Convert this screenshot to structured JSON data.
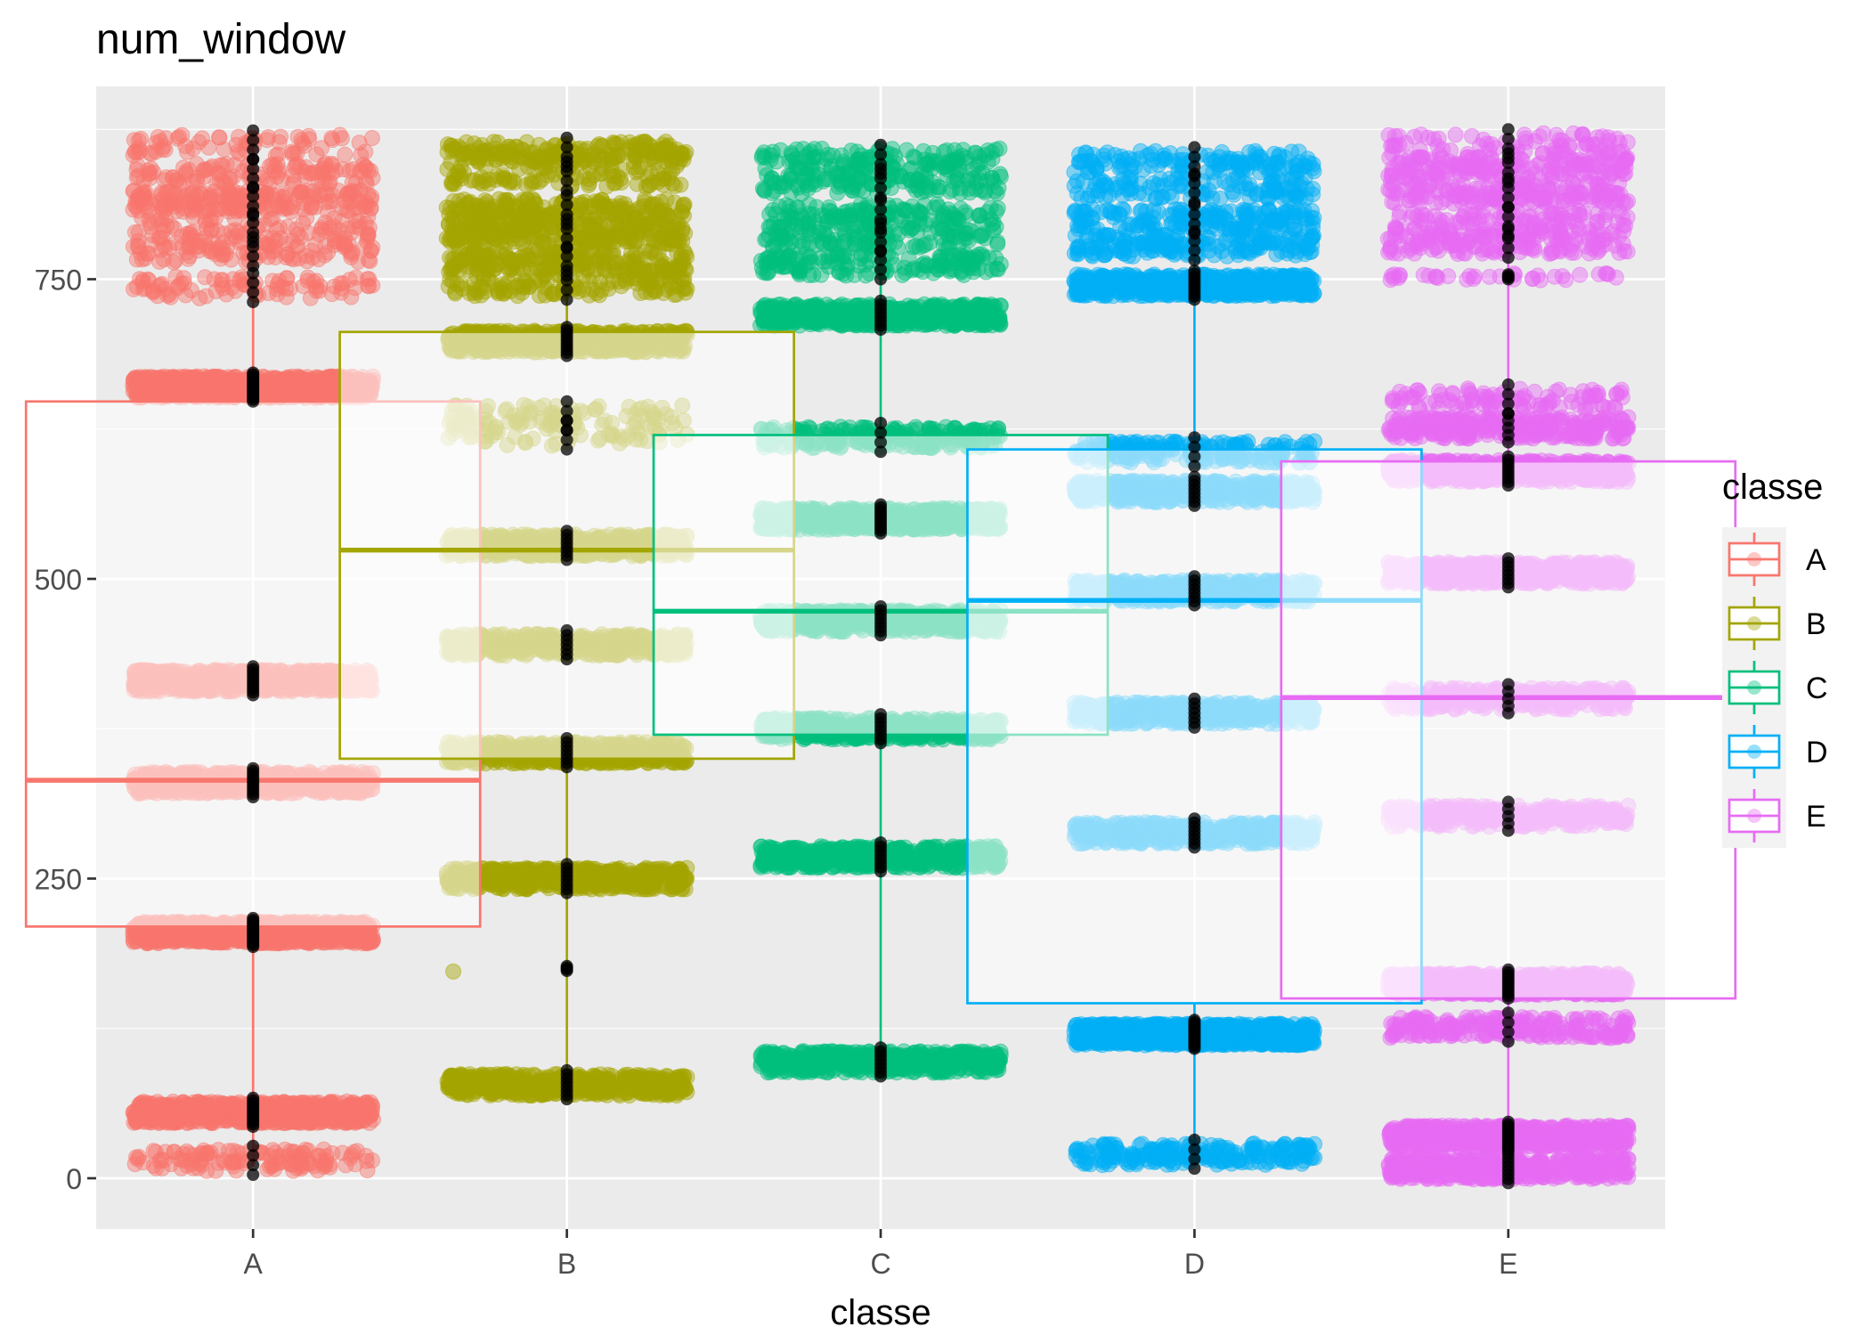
{
  "chart_data": {
    "type": "box+jitter",
    "title": "num_window",
    "xlabel": "classe",
    "ylabel": "",
    "categories": [
      "A",
      "B",
      "C",
      "D",
      "E"
    ],
    "y_ticks": [
      0,
      250,
      500,
      750
    ],
    "y_tick_labels": [
      "0",
      "250",
      "500",
      "750"
    ],
    "ylim": [
      -42,
      910
    ],
    "grid": true,
    "legend": {
      "title": "classe",
      "position": "right",
      "items": [
        "A",
        "B",
        "C",
        "D",
        "E"
      ]
    },
    "colors": {
      "A": "#F8766D",
      "B": "#A3A500",
      "C": "#00BF7D",
      "D": "#00B0F6",
      "E": "#E76BF3"
    },
    "series": [
      {
        "name": "A",
        "box": {
          "min": 10,
          "q1": 210,
          "median": 332,
          "q3": 648,
          "max": 864
        },
        "bands": [
          {
            "y": 15,
            "n": 130
          },
          {
            "y": 55,
            "n": 700
          },
          {
            "y": 205,
            "n": 1100
          },
          {
            "y": 330,
            "n": 650
          },
          {
            "y": 415,
            "n": 650
          },
          {
            "y": 660,
            "n": 1300
          },
          {
            "y": 743,
            "n": 90
          },
          {
            "y": 773,
            "n": 110
          },
          {
            "y": 793,
            "n": 90
          },
          {
            "y": 815,
            "n": 200
          },
          {
            "y": 838,
            "n": 110
          },
          {
            "y": 862,
            "n": 70
          }
        ]
      },
      {
        "name": "B",
        "box": {
          "min": 70,
          "q1": 350,
          "median": 524,
          "q3": 706,
          "max": 864
        },
        "bands": [
          {
            "y": 78,
            "n": 500
          },
          {
            "y": 175,
            "n": 1
          },
          {
            "y": 250,
            "n": 500
          },
          {
            "y": 355,
            "n": 500
          },
          {
            "y": 445,
            "n": 400
          },
          {
            "y": 528,
            "n": 500
          },
          {
            "y": 620,
            "n": 60
          },
          {
            "y": 636,
            "n": 90
          },
          {
            "y": 698,
            "n": 600
          },
          {
            "y": 745,
            "n": 130
          },
          {
            "y": 765,
            "n": 220
          },
          {
            "y": 788,
            "n": 250
          },
          {
            "y": 808,
            "n": 200
          },
          {
            "y": 836,
            "n": 100
          },
          {
            "y": 856,
            "n": 200
          }
        ]
      },
      {
        "name": "C",
        "box": {
          "min": 90,
          "q1": 370,
          "median": 473,
          "q3": 620,
          "max": 853
        },
        "bands": [
          {
            "y": 97,
            "n": 500
          },
          {
            "y": 268,
            "n": 450
          },
          {
            "y": 375,
            "n": 500
          },
          {
            "y": 465,
            "n": 500
          },
          {
            "y": 550,
            "n": 650
          },
          {
            "y": 618,
            "n": 220
          },
          {
            "y": 720,
            "n": 500
          },
          {
            "y": 762,
            "n": 150
          },
          {
            "y": 785,
            "n": 130
          },
          {
            "y": 804,
            "n": 130
          },
          {
            "y": 830,
            "n": 130
          },
          {
            "y": 850,
            "n": 130
          }
        ]
      },
      {
        "name": "D",
        "box": {
          "min": 18,
          "q1": 146,
          "median": 482,
          "q3": 608,
          "max": 852
        },
        "bands": [
          {
            "y": 20,
            "n": 220
          },
          {
            "y": 120,
            "n": 1000
          },
          {
            "y": 288,
            "n": 450
          },
          {
            "y": 388,
            "n": 400
          },
          {
            "y": 490,
            "n": 450
          },
          {
            "y": 573,
            "n": 500
          },
          {
            "y": 606,
            "n": 200
          },
          {
            "y": 745,
            "n": 600
          },
          {
            "y": 778,
            "n": 180
          },
          {
            "y": 800,
            "n": 180
          },
          {
            "y": 826,
            "n": 120
          },
          {
            "y": 848,
            "n": 130
          }
        ]
      },
      {
        "name": "E",
        "box": {
          "min": 2,
          "q1": 150,
          "median": 401,
          "q3": 598,
          "max": 866
        },
        "bands": [
          {
            "y": 8,
            "n": 450
          },
          {
            "y": 35,
            "n": 700
          },
          {
            "y": 126,
            "n": 220
          },
          {
            "y": 162,
            "n": 700
          },
          {
            "y": 302,
            "n": 300
          },
          {
            "y": 400,
            "n": 300
          },
          {
            "y": 505,
            "n": 500
          },
          {
            "y": 590,
            "n": 550
          },
          {
            "y": 626,
            "n": 300
          },
          {
            "y": 650,
            "n": 100
          },
          {
            "y": 752,
            "n": 35
          },
          {
            "y": 780,
            "n": 150
          },
          {
            "y": 798,
            "n": 120
          },
          {
            "y": 822,
            "n": 180
          },
          {
            "y": 843,
            "n": 180
          },
          {
            "y": 863,
            "n": 80
          }
        ]
      }
    ]
  }
}
